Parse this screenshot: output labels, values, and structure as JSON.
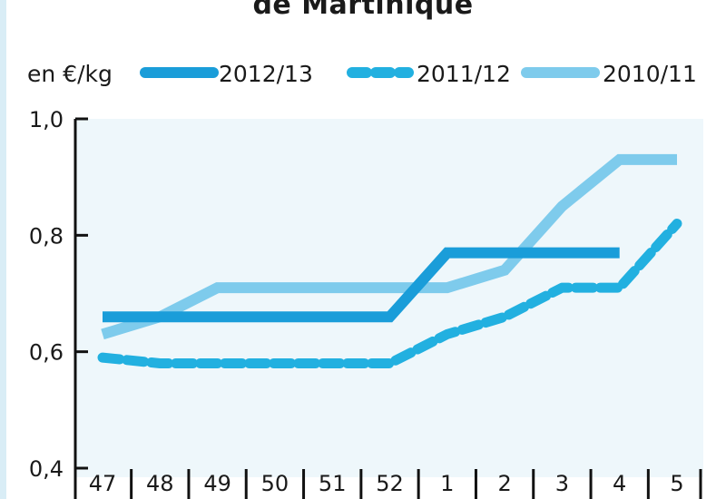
{
  "chart_data": {
    "type": "line",
    "title": "de Martinique",
    "ylabel": "en €/kg",
    "categories": [
      "47",
      "48",
      "49",
      "50",
      "51",
      "52",
      "1",
      "2",
      "3",
      "4",
      "5"
    ],
    "y_ticks": [
      "1,0",
      "0,8",
      "0,6",
      "0,4"
    ],
    "ylim": [
      0.4,
      1.0
    ],
    "grid": false,
    "legend_position": "top",
    "series": [
      {
        "name": "2012/13",
        "style": "solid",
        "color": "#1a9dd9",
        "values": [
          0.66,
          0.66,
          0.66,
          0.66,
          0.66,
          0.66,
          0.77,
          0.77,
          0.77,
          0.77,
          null
        ]
      },
      {
        "name": "2011/12",
        "style": "dashed",
        "color": "#22b0e0",
        "values": [
          0.59,
          0.58,
          0.58,
          0.58,
          0.58,
          0.58,
          0.63,
          0.66,
          0.71,
          0.71,
          0.82
        ]
      },
      {
        "name": "2010/11",
        "style": "solid",
        "color": "#7ecbec",
        "values": [
          0.63,
          0.66,
          0.71,
          0.71,
          0.71,
          0.71,
          0.71,
          0.74,
          0.85,
          0.93,
          0.93
        ]
      }
    ]
  },
  "colors": {
    "plot_background": "#eef7fb",
    "axis": "#111111"
  }
}
